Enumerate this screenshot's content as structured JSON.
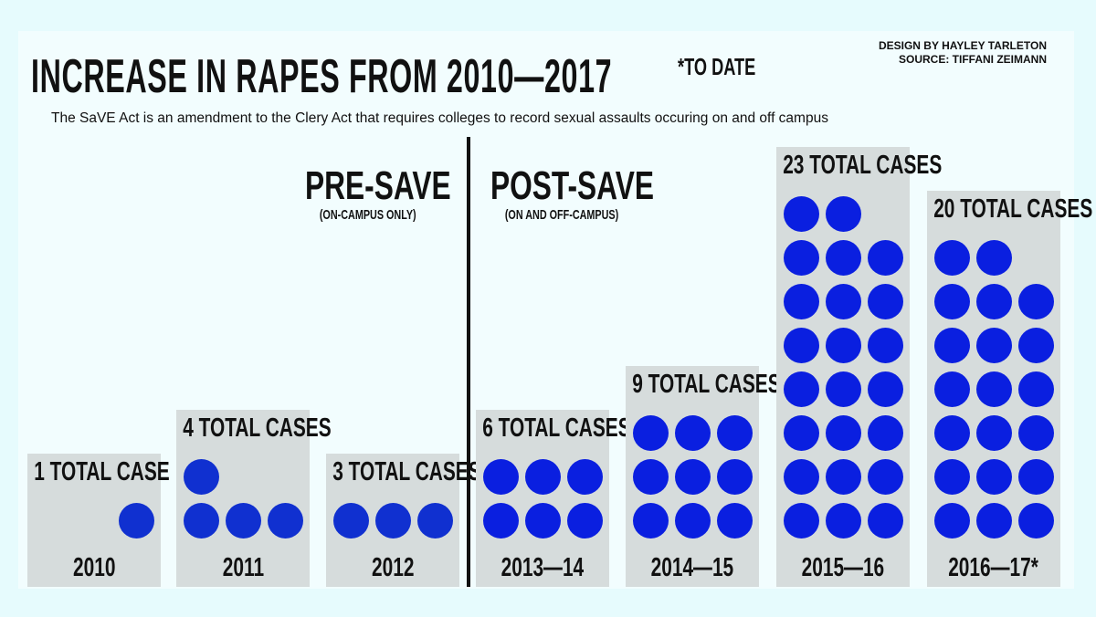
{
  "header": {
    "title": "INCREASE IN RAPES FROM 2010—2017",
    "to_date": "*TO DATE",
    "credit_design": "DESIGN BY HAYLEY TARLETON",
    "credit_source": "SOURCE:  TIFFANI ZEIMANN",
    "subtitle": "The SaVE Act is an amendment to the Clery Act that requires colleges to record sexual assaults occuring on and off campus"
  },
  "eras": {
    "pre": {
      "label": "PRE-SAVE",
      "note": "(ON-CAMPUS ONLY)"
    },
    "post": {
      "label": "POST-SAVE",
      "note": "(ON AND OFF-CAMPUS)"
    }
  },
  "colors": {
    "dot": "#0a1fe0",
    "dot_pre": "#1030d0",
    "bar_bg": "#d6dcdc",
    "page_bg": "#e6fbfd"
  },
  "chart_data": {
    "type": "bar",
    "categories": [
      "2010",
      "2011",
      "2012",
      "2013—14",
      "2014—15",
      "2015—16",
      "2016—17*"
    ],
    "values": [
      1,
      4,
      3,
      6,
      9,
      23,
      20
    ],
    "value_labels": [
      "1 TOTAL CASE",
      "4 TOTAL CASES",
      "3 TOTAL CASES",
      "6 TOTAL CASES",
      "9 TOTAL CASES",
      "23 TOTAL CASES",
      "20 TOTAL CASES"
    ],
    "era": [
      "pre",
      "pre",
      "pre",
      "post",
      "post",
      "post",
      "post"
    ],
    "unit": "cases",
    "encoding": "one dot per case"
  }
}
